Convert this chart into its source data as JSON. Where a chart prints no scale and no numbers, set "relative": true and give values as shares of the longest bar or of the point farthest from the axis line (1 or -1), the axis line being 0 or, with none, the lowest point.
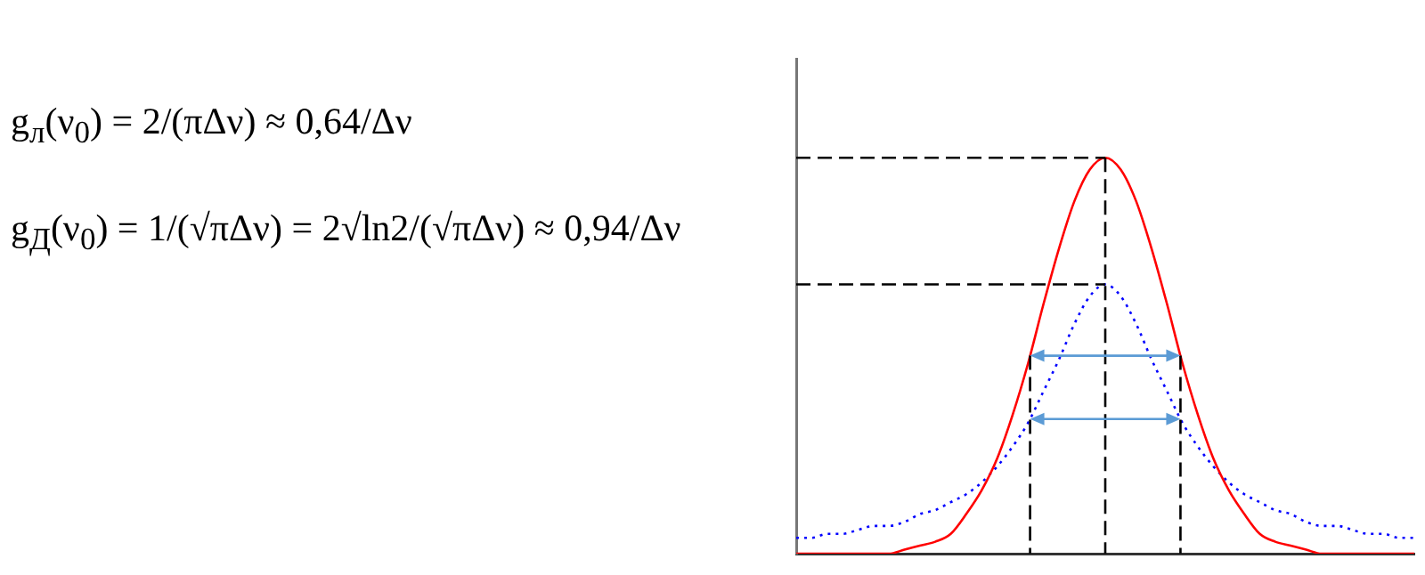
{
  "chart_data": {
    "type": "line",
    "relative": true,
    "legend": false,
    "grid": false,
    "tick_labels": false,
    "marker": "none",
    "categories": [
      null,
      null,
      null,
      null,
      null,
      null,
      null,
      null,
      null,
      null,
      null,
      null,
      null,
      null,
      null,
      null,
      null,
      null,
      null,
      null,
      null,
      null,
      null,
      null,
      null,
      null,
      null,
      null,
      null,
      null,
      null,
      null,
      null,
      null,
      null,
      null,
      null,
      null,
      null,
      null,
      null
    ],
    "series": [
      {
        "color": "#ff0000",
        "line_style": "solid",
        "values": [
          0,
          0,
          0,
          0,
          0,
          0,
          0,
          0.01,
          0.02,
          0.03,
          0.05,
          0.1,
          0.16,
          0.24,
          0.35,
          0.48,
          0.63,
          0.77,
          0.89,
          0.97,
          1,
          0.97,
          0.89,
          0.77,
          0.63,
          0.48,
          0.35,
          0.24,
          0.16,
          0.1,
          0.05,
          0.03,
          0.02,
          0.01,
          0,
          0,
          0,
          0,
          0,
          0,
          0
        ]
      },
      {
        "color": "#0000ff",
        "line_style": "dotted",
        "values": [
          0.04,
          0.04,
          0.05,
          0.05,
          0.06,
          0.07,
          0.07,
          0.08,
          0.1,
          0.11,
          0.13,
          0.15,
          0.18,
          0.22,
          0.27,
          0.33,
          0.41,
          0.49,
          0.58,
          0.65,
          0.68,
          0.65,
          0.58,
          0.49,
          0.41,
          0.33,
          0.27,
          0.22,
          0.18,
          0.15,
          0.13,
          0.11,
          0.1,
          0.08,
          0.07,
          0.07,
          0.06,
          0.05,
          0.05,
          0.04,
          0.04
        ]
      }
    ],
    "ref_lines": [
      {
        "axis": "y",
        "value": 1,
        "color": "#000000",
        "line_style": "dashed"
      },
      {
        "axis": "y",
        "value": 0.68,
        "color": "#000000",
        "line_style": "dashed"
      }
    ],
    "annotations": [
      "g$_{л}$(ν$_{0}$) = 2/(πΔν) ≈ 0,64/Δν",
      "g$_{Д}$(ν$_{0}$) = 1/(√πΔν) = 2√ln2/(√πΔν) ≈ 0,94/Δν"
    ]
  }
}
